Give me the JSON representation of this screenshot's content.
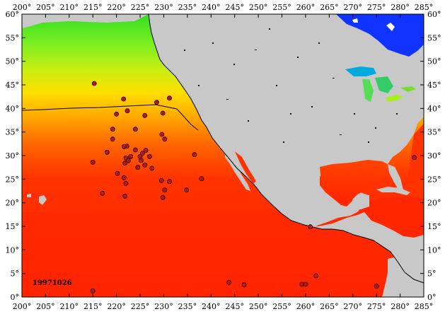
{
  "date_stamp": "19971026",
  "lon_labels": [
    "200°",
    "205°",
    "210°",
    "215°",
    "220°",
    "225°",
    "230°",
    "235°",
    "240°",
    "245°",
    "250°",
    "255°",
    "260°",
    "265°",
    "270°",
    "275°",
    "280°",
    "285°"
  ],
  "lat_labels": [
    "60°",
    "55°",
    "50°",
    "45°",
    "40°",
    "35°",
    "30°",
    "25°",
    "20°",
    "15°",
    "10°",
    "5°",
    "0°"
  ],
  "colors": {
    "land": "#c8c8c8",
    "sst_cold": "#33dd22",
    "sst_mid": "#ffcc00",
    "sst_warm": "#ff2200",
    "cold_lakes": "#1133ff",
    "buoy": "#cc1111"
  },
  "chart_data": {
    "type": "scatter",
    "xlim": [
      200,
      285
    ],
    "ylim": [
      0,
      60
    ],
    "buoy_points": [
      {
        "x": 215.3,
        "y": 45.3
      },
      {
        "x": 221.5,
        "y": 42.0
      },
      {
        "x": 231.2,
        "y": 42.2
      },
      {
        "x": 228.5,
        "y": 41.3
      },
      {
        "x": 220.0,
        "y": 38.8
      },
      {
        "x": 222.3,
        "y": 39.5
      },
      {
        "x": 226.0,
        "y": 38.5
      },
      {
        "x": 229.8,
        "y": 39.0
      },
      {
        "x": 224.0,
        "y": 35.6
      },
      {
        "x": 219.2,
        "y": 35.6
      },
      {
        "x": 229.6,
        "y": 34.5
      },
      {
        "x": 230.2,
        "y": 33.5
      },
      {
        "x": 219.2,
        "y": 33.5
      },
      {
        "x": 222.2,
        "y": 32.0
      },
      {
        "x": 221.6,
        "y": 31.9
      },
      {
        "x": 224.0,
        "y": 31.2
      },
      {
        "x": 226.2,
        "y": 31.1
      },
      {
        "x": 225.5,
        "y": 30.5
      },
      {
        "x": 218.0,
        "y": 30.7
      },
      {
        "x": 223.0,
        "y": 29.8
      },
      {
        "x": 225.0,
        "y": 29.8
      },
      {
        "x": 227.0,
        "y": 29.8
      },
      {
        "x": 222.0,
        "y": 29.5
      },
      {
        "x": 225.2,
        "y": 29.0
      },
      {
        "x": 222.5,
        "y": 28.9
      },
      {
        "x": 236.5,
        "y": 30.2
      },
      {
        "x": 215.0,
        "y": 28.6
      },
      {
        "x": 221.8,
        "y": 28.4
      },
      {
        "x": 226.0,
        "y": 28.0
      },
      {
        "x": 224.5,
        "y": 27.5
      },
      {
        "x": 227.5,
        "y": 27.3
      },
      {
        "x": 220.2,
        "y": 26.2
      },
      {
        "x": 221.6,
        "y": 25.3
      },
      {
        "x": 229.5,
        "y": 24.7
      },
      {
        "x": 238.0,
        "y": 25.1
      },
      {
        "x": 231.2,
        "y": 24.5
      },
      {
        "x": 222.0,
        "y": 24.1
      },
      {
        "x": 230.2,
        "y": 22.7
      },
      {
        "x": 234.8,
        "y": 22.7
      },
      {
        "x": 221.8,
        "y": 21.4
      },
      {
        "x": 217.0,
        "y": 22.0
      },
      {
        "x": 229.8,
        "y": 21.1
      },
      {
        "x": 215.0,
        "y": 1.3
      },
      {
        "x": 243.8,
        "y": 3.1
      },
      {
        "x": 247.0,
        "y": 2.6
      },
      {
        "x": 259.2,
        "y": 2.7
      },
      {
        "x": 260.0,
        "y": 2.7
      },
      {
        "x": 262.2,
        "y": 4.5
      },
      {
        "x": 261.0,
        "y": 14.9
      },
      {
        "x": 275.0,
        "y": 2.3
      },
      {
        "x": 283.0,
        "y": 29.6
      }
    ]
  }
}
